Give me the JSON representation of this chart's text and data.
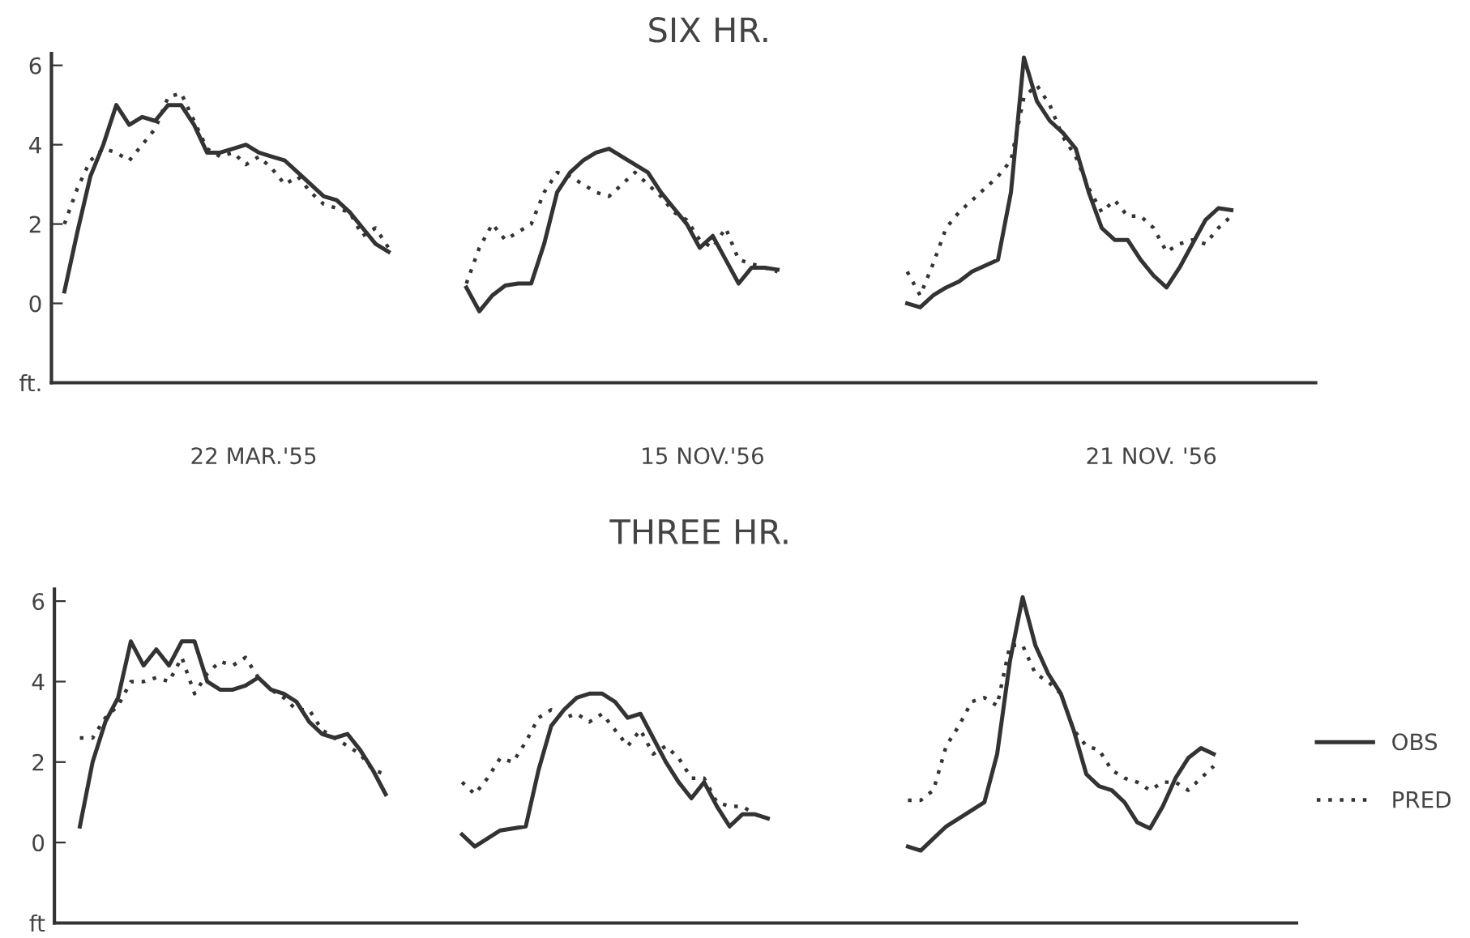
{
  "chart_data": [
    {
      "type": "line",
      "title": "SIX HR.",
      "annotations": [
        "22 MAR.'55",
        "15 NOV.'56",
        "21 NOV. '56"
      ],
      "ylim": [
        -2,
        6.3
      ],
      "yticks": [
        {
          "value": -2,
          "label": "ft."
        },
        0,
        2,
        4,
        6
      ],
      "grid": false,
      "categories": [
        null,
        null,
        null,
        null,
        null,
        null,
        null,
        null,
        null,
        null,
        null,
        null,
        null,
        null,
        null,
        null,
        null,
        null,
        null,
        null,
        null,
        null,
        null,
        null,
        null,
        null,
        null,
        null,
        null,
        null,
        null,
        null,
        null,
        null,
        null,
        null,
        null,
        null,
        null,
        null,
        null,
        null,
        null,
        null,
        null,
        null,
        null,
        null,
        null,
        null,
        null,
        null,
        null,
        null,
        null,
        null,
        null,
        null,
        null,
        null,
        null,
        null,
        null,
        null,
        null,
        null,
        null,
        null,
        null,
        null,
        null,
        null,
        null,
        null,
        null,
        null,
        null,
        null,
        null,
        null,
        null,
        null,
        null,
        null,
        null,
        null,
        null,
        null,
        null,
        null,
        null,
        null,
        null,
        null,
        null,
        null,
        null
      ],
      "series": [
        {
          "color": "#333333",
          "line_style": "solid",
          "values": [
            0.3,
            1.8,
            3.2,
            4.0,
            5.0,
            4.5,
            4.7,
            4.6,
            5.0,
            5.0,
            4.5,
            3.8,
            3.8,
            3.9,
            4.0,
            3.8,
            3.7,
            3.6,
            3.3,
            3.0,
            2.7,
            2.6,
            2.3,
            1.9,
            1.5,
            1.3,
            null,
            null,
            null,
            null,
            null,
            0.4,
            -0.2,
            0.2,
            0.45,
            0.5,
            0.5,
            1.5,
            2.8,
            3.3,
            3.6,
            3.8,
            3.9,
            3.7,
            3.5,
            3.3,
            2.8,
            2.4,
            2.0,
            1.4,
            1.7,
            1.1,
            0.5,
            0.9,
            0.9,
            0.85,
            null,
            null,
            null,
            null,
            null,
            null,
            null,
            null,
            null,
            0.0,
            -0.1,
            0.2,
            0.4,
            0.55,
            0.8,
            0.95,
            1.1,
            2.8,
            6.2,
            5.1,
            4.6,
            4.3,
            3.9,
            2.8,
            1.9,
            1.6,
            1.6,
            1.1,
            0.7,
            0.4,
            0.9,
            1.5,
            2.1,
            2.4,
            2.35,
            null,
            null,
            null,
            null,
            null,
            null
          ]
        },
        {
          "color": "#333333",
          "line_style": "dotted",
          "values": [
            2.0,
            2.9,
            3.6,
            3.9,
            3.8,
            3.6,
            4.0,
            4.4,
            5.2,
            5.3,
            4.6,
            3.9,
            3.7,
            3.8,
            3.5,
            3.7,
            3.4,
            3.0,
            3.2,
            2.8,
            2.5,
            2.4,
            2.3,
            1.7,
            1.9,
            1.4,
            null,
            null,
            null,
            null,
            null,
            0.5,
            1.4,
            2.0,
            1.6,
            1.8,
            2.0,
            2.8,
            3.3,
            3.2,
            3.0,
            2.8,
            2.7,
            3.0,
            3.3,
            3.0,
            2.7,
            2.3,
            2.1,
            1.6,
            1.4,
            1.9,
            1.1,
            1.0,
            0.9,
            0.8,
            null,
            null,
            null,
            null,
            null,
            null,
            null,
            null,
            null,
            0.8,
            0.2,
            1.0,
            1.9,
            2.3,
            2.6,
            2.9,
            3.2,
            3.6,
            5.2,
            5.5,
            5.0,
            4.2,
            3.7,
            2.9,
            2.3,
            2.6,
            2.2,
            2.2,
            1.9,
            1.3,
            1.5,
            1.6,
            1.5,
            1.9,
            2.2,
            null,
            null,
            null,
            null,
            null,
            null
          ]
        }
      ]
    },
    {
      "type": "line",
      "title": "THREE HR.",
      "ylim": [
        -2,
        6.3
      ],
      "yticks": [
        {
          "value": -2,
          "label": "ft"
        },
        0,
        2,
        4,
        6
      ],
      "grid": false,
      "legend": "right",
      "categories": [
        null,
        null,
        null,
        null,
        null,
        null,
        null,
        null,
        null,
        null,
        null,
        null,
        null,
        null,
        null,
        null,
        null,
        null,
        null,
        null,
        null,
        null,
        null,
        null,
        null,
        null,
        null,
        null,
        null,
        null,
        null,
        null,
        null,
        null,
        null,
        null,
        null,
        null,
        null,
        null,
        null,
        null,
        null,
        null,
        null,
        null,
        null,
        null,
        null,
        null,
        null,
        null,
        null,
        null,
        null,
        null,
        null,
        null,
        null,
        null,
        null,
        null,
        null,
        null,
        null,
        null,
        null,
        null,
        null,
        null,
        null,
        null,
        null,
        null,
        null,
        null,
        null,
        null,
        null,
        null,
        null,
        null,
        null,
        null,
        null,
        null,
        null,
        null,
        null,
        null,
        null,
        null,
        null,
        null,
        null,
        null,
        null
      ],
      "series": [
        {
          "name": "OBS",
          "color": "#333333",
          "line_style": "solid",
          "values": [
            null,
            0.4,
            2.0,
            3.0,
            3.6,
            5.0,
            4.4,
            4.8,
            4.4,
            5.0,
            5.0,
            4.0,
            3.8,
            3.8,
            3.9,
            4.1,
            3.8,
            3.7,
            3.5,
            3.0,
            2.7,
            2.6,
            2.7,
            2.3,
            1.8,
            1.2,
            null,
            null,
            null,
            null,
            null,
            0.2,
            -0.1,
            0.1,
            0.3,
            0.35,
            0.4,
            1.8,
            2.9,
            3.3,
            3.6,
            3.7,
            3.7,
            3.5,
            3.1,
            3.2,
            2.6,
            2.0,
            1.5,
            1.1,
            1.5,
            0.9,
            0.4,
            0.7,
            0.7,
            0.6,
            null,
            null,
            null,
            null,
            null,
            null,
            null,
            null,
            null,
            null,
            -0.1,
            -0.2,
            0.1,
            0.4,
            0.6,
            0.8,
            1.0,
            2.2,
            4.5,
            6.1,
            4.9,
            4.2,
            3.7,
            2.8,
            1.7,
            1.4,
            1.3,
            1.0,
            0.5,
            0.35,
            0.9,
            1.6,
            2.1,
            2.35,
            2.2,
            null,
            null,
            null,
            null,
            null,
            null
          ]
        },
        {
          "name": "PRED",
          "color": "#333333",
          "line_style": "dotted",
          "values": [
            null,
            2.6,
            2.6,
            3.1,
            3.4,
            4.0,
            4.0,
            4.1,
            4.0,
            4.6,
            3.7,
            4.2,
            4.5,
            4.4,
            4.6,
            4.1,
            3.8,
            3.6,
            3.3,
            3.3,
            2.8,
            2.6,
            2.4,
            2.2,
            1.8,
            1.7,
            null,
            null,
            null,
            null,
            null,
            1.5,
            1.2,
            1.6,
            2.1,
            2.0,
            2.5,
            3.1,
            3.3,
            3.1,
            3.2,
            3.0,
            3.2,
            2.8,
            2.4,
            2.8,
            2.2,
            2.4,
            2.1,
            1.6,
            1.6,
            1.0,
            0.9,
            0.9,
            0.7,
            0.6,
            null,
            null,
            null,
            null,
            null,
            null,
            null,
            null,
            null,
            null,
            1.05,
            1.05,
            1.3,
            2.4,
            2.9,
            3.5,
            3.6,
            3.4,
            4.9,
            4.9,
            4.2,
            4.0,
            3.7,
            2.8,
            2.4,
            2.3,
            1.8,
            1.6,
            1.5,
            1.3,
            1.5,
            1.5,
            1.3,
            1.6,
            1.9,
            null,
            null,
            null,
            null,
            null,
            null
          ]
        }
      ]
    }
  ]
}
